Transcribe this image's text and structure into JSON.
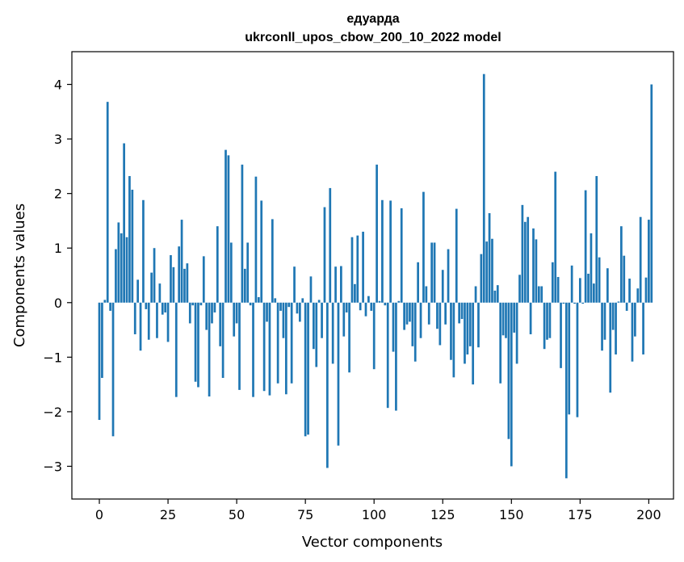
{
  "chart_data": {
    "type": "bar",
    "title_line1": "едуарда",
    "title_line2": "ukrconll_upos_cbow_200_10_2022 model",
    "xlabel": "Vector components",
    "ylabel": "Components values",
    "xlim": [
      -10,
      209
    ],
    "ylim": [
      -3.6,
      4.6
    ],
    "xticks": [
      0,
      25,
      50,
      75,
      100,
      125,
      150,
      175,
      200
    ],
    "yticks": [
      -3,
      -2,
      -1,
      0,
      1,
      2,
      3,
      4
    ],
    "xtick_labels": [
      "0",
      "25",
      "50",
      "75",
      "100",
      "125",
      "150",
      "175",
      "200"
    ],
    "ytick_labels": [
      "−3",
      "−2",
      "−1",
      "0",
      "1",
      "2",
      "3",
      "4"
    ],
    "color": "#1f77b4",
    "grid": false,
    "values": [
      -2.15,
      -1.38,
      0.05,
      3.68,
      -0.15,
      -2.45,
      0.98,
      1.47,
      1.27,
      2.92,
      1.2,
      2.32,
      2.07,
      -0.58,
      0.42,
      -0.88,
      1.88,
      -0.12,
      -0.68,
      0.55,
      1.0,
      -0.65,
      0.35,
      -0.22,
      -0.18,
      -0.72,
      0.87,
      0.65,
      -1.73,
      1.03,
      1.52,
      0.62,
      0.72,
      -0.38,
      -0.05,
      -1.45,
      -1.55,
      -0.05,
      0.85,
      -0.5,
      -1.72,
      -0.38,
      -0.18,
      1.4,
      -0.8,
      -1.38,
      2.8,
      2.7,
      1.1,
      -0.62,
      -0.38,
      -1.6,
      2.53,
      0.62,
      1.1,
      -0.05,
      -1.73,
      2.31,
      0.1,
      1.87,
      -1.62,
      -0.35,
      -1.7,
      1.53,
      0.08,
      -1.48,
      -0.15,
      -0.65,
      -1.68,
      -0.08,
      -1.48,
      0.66,
      -0.2,
      -0.35,
      0.08,
      -2.45,
      -2.42,
      0.48,
      -0.85,
      -1.18,
      0.05,
      -0.65,
      1.75,
      -3.03,
      2.1,
      -1.12,
      0.66,
      -2.62,
      0.67,
      -0.62,
      -0.18,
      -1.28,
      1.2,
      0.34,
      1.23,
      -0.14,
      1.3,
      -0.25,
      0.12,
      -0.15,
      -1.22,
      2.53,
      0.03,
      1.88,
      -0.05,
      -1.93,
      1.87,
      -0.9,
      -1.98,
      0.03,
      1.73,
      -0.5,
      -0.4,
      -0.35,
      -0.8,
      -1.08,
      0.74,
      -0.65,
      2.03,
      0.3,
      -0.4,
      1.1,
      1.1,
      -0.48,
      -0.78,
      0.6,
      -0.4,
      0.98,
      -1.05,
      -1.37,
      1.72,
      -0.38,
      -0.3,
      -1.12,
      -0.95,
      -0.8,
      -1.5,
      0.3,
      -0.82,
      0.89,
      4.19,
      1.12,
      1.64,
      1.17,
      0.22,
      0.32,
      -1.48,
      -0.6,
      -0.65,
      -2.5,
      -3.0,
      -0.55,
      -1.12,
      0.51,
      1.79,
      1.48,
      1.57,
      -0.58,
      1.36,
      1.16,
      0.3,
      0.3,
      -0.85,
      -0.68,
      -0.65,
      0.74,
      2.4,
      0.47,
      -1.2,
      -0.02,
      -3.22,
      -2.05,
      0.68,
      -0.02,
      -2.1,
      0.45,
      -0.02,
      2.06,
      0.53,
      1.27,
      0.35,
      2.32,
      0.83,
      -0.88,
      -0.68,
      0.63,
      -1.65,
      -0.5,
      -0.95,
      0.02,
      1.4,
      0.86,
      -0.15,
      0.44,
      -1.08,
      -0.62,
      0.26,
      1.57,
      -0.95,
      0.46,
      1.52,
      4.0
    ]
  }
}
